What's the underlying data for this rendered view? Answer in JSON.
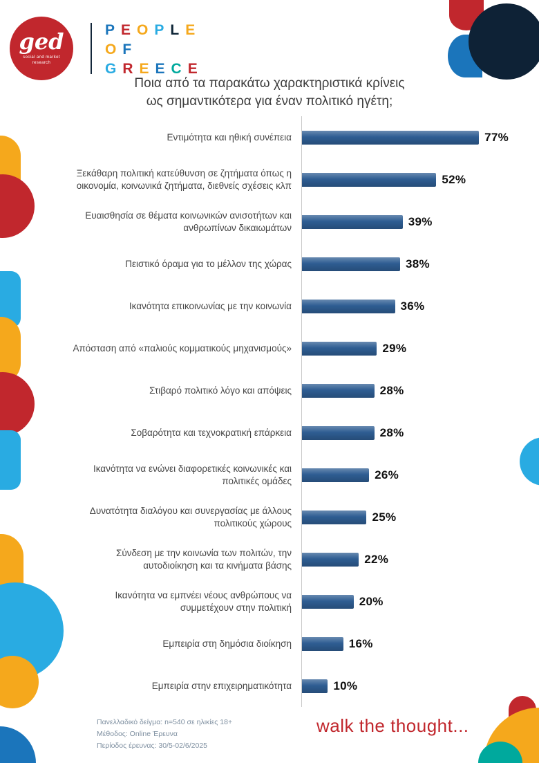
{
  "brand": {
    "logo": {
      "text": "ged",
      "subtext": "social and market research",
      "bg_color": "#c1272d"
    },
    "wordmark": [
      [
        {
          "ch": "P",
          "color": "#1b75bb"
        },
        {
          "ch": "E",
          "color": "#c1272d"
        },
        {
          "ch": "O",
          "color": "#f5a81c"
        },
        {
          "ch": "P",
          "color": "#29abe2"
        },
        {
          "ch": "L",
          "color": "#0d2436"
        },
        {
          "ch": "E",
          "color": "#f5a81c"
        }
      ],
      [
        {
          "ch": "O",
          "color": "#f5a81c"
        },
        {
          "ch": "F",
          "color": "#1b75bb"
        }
      ],
      [
        {
          "ch": "G",
          "color": "#29abe2"
        },
        {
          "ch": "R",
          "color": "#c1272d"
        },
        {
          "ch": "E",
          "color": "#f5a81c"
        },
        {
          "ch": "E",
          "color": "#1b75bb"
        },
        {
          "ch": "C",
          "color": "#00a99d"
        },
        {
          "ch": "E",
          "color": "#c1272d"
        }
      ]
    ]
  },
  "title": {
    "line1": "Ποια από τα παρακάτω χαρακτηριστικά κρίνεις",
    "line2": "ως σημαντικότερα για έναν πολιτικό ηγέτη;"
  },
  "chart_data": {
    "type": "bar",
    "orientation": "horizontal",
    "title": "Ποια από τα παρακάτω χαρακτηριστικά κρίνεις ως σημαντικότερα για έναν πολιτικό ηγέτη;",
    "unit": "%",
    "xlim": [
      0,
      80
    ],
    "bar_color": "#2e5d92",
    "axis_line_color": "#c9c9c9",
    "categories": [
      "Εντιμότητα και ηθική συνέπεια",
      "Ξεκάθαρη πολιτική κατεύθυνση σε ζητήματα όπως η οικονομία, κοινωνικά ζητήματα, διεθνείς σχέσεις κλπ",
      "Ευαισθησία σε θέματα κοινωνικών ανισοτήτων και ανθρωπίνων δικαιωμάτων",
      "Πειστικό όραμα για το μέλλον της χώρας",
      "Ικανότητα επικοινωνίας με την κοινωνία",
      "Απόσταση από «παλιούς κομματικούς μηχανισμούς»",
      "Στιβαρό πολιτικό λόγο και απόψεις",
      "Σοβαρότητα και τεχνοκρατική επάρκεια",
      "Ικανότητα να ενώνει διαφορετικές κοινωνικές και πολιτικές ομάδες",
      "Δυνατότητα διαλόγου και συνεργασίας με άλλους πολιτικούς χώρους",
      "Σύνδεση με την κοινωνία των πολιτών, την αυτοδιοίκηση και τα κινήματα βάσης",
      "Ικανότητα να εμπνέει νέους ανθρώπους να συμμετέχουν στην πολιτική",
      "Εμπειρία στη δημόσια διοίκηση",
      "Εμπειρία στην επιχειρηματικότητα"
    ],
    "values": [
      77,
      52,
      39,
      38,
      36,
      29,
      28,
      28,
      26,
      25,
      22,
      20,
      16,
      10
    ]
  },
  "footer": {
    "notes": [
      "Πανελλαδικό δείγμα: n=540 σε ηλικίες 18+",
      "Μέθοδος: Online Έρευνα",
      "Περίοδος έρευνας: 30/5-02/6/2025"
    ],
    "tagline": "walk the thought..."
  }
}
